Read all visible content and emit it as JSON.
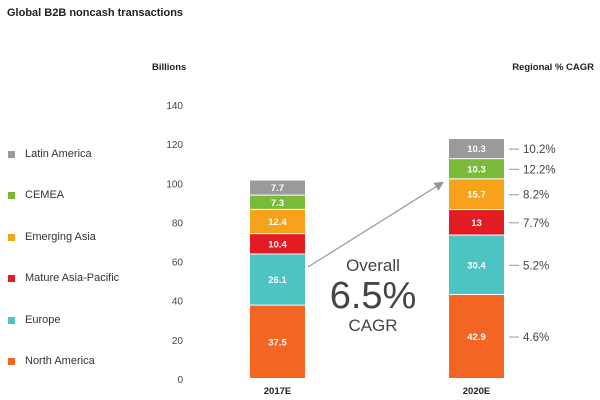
{
  "chart_data": {
    "type": "bar",
    "stacked": true,
    "title": "Global B2B noncash transactions",
    "ylabel": "Billions",
    "right_label": "Regional % CAGR",
    "ylim": [
      0,
      140
    ],
    "yticks": [
      0,
      20,
      40,
      60,
      80,
      100,
      120,
      140
    ],
    "categories": [
      "2017E",
      "2020E"
    ],
    "series": [
      {
        "name": "North America",
        "color": "#f26522",
        "values": [
          37.5,
          42.9
        ],
        "labels": [
          "37.5",
          "42.9"
        ],
        "cagr": "4.6%"
      },
      {
        "name": "Europe",
        "color": "#4dc3c4",
        "values": [
          26.1,
          30.4
        ],
        "labels": [
          "26.1",
          "30.4"
        ],
        "cagr": "5.2%"
      },
      {
        "name": "Mature Asia-Pacific",
        "color": "#e31b23",
        "values": [
          10.4,
          13
        ],
        "labels": [
          "10.4",
          "13"
        ],
        "cagr": "7.7%"
      },
      {
        "name": "Emerging Asia",
        "color": "#f7a21b",
        "values": [
          12.4,
          15.7
        ],
        "labels": [
          "12.4",
          "15.7"
        ],
        "cagr": "8.2%"
      },
      {
        "name": "CEMEA",
        "color": "#7ab93a",
        "values": [
          7.3,
          10.3
        ],
        "labels": [
          "7.3",
          "10.3"
        ],
        "cagr": "12.2%"
      },
      {
        "name": "Latin America",
        "color": "#9a9a9a",
        "values": [
          7.7,
          10.3
        ],
        "labels": [
          "7.7",
          "10.3"
        ],
        "cagr": "10.2%"
      }
    ],
    "annotation": {
      "line1": "Overall",
      "line2": "6.5%",
      "line3": "CAGR"
    }
  }
}
